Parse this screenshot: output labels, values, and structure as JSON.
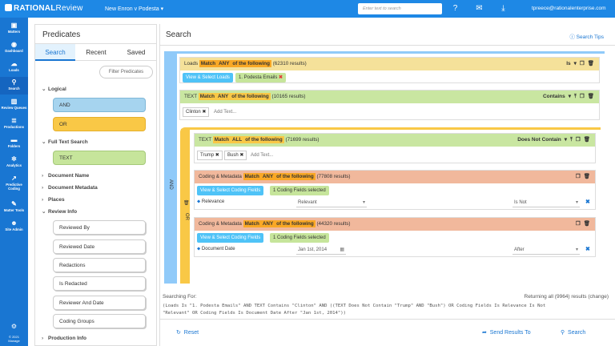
{
  "topbar": {
    "logo_bold": "RATIONAL",
    "logo_thin": "Review",
    "matter": "New Enron v Podesta",
    "search_placeholder": "Enter text to search",
    "user_email": "tpreece@rationalenterprise.com",
    "color": "#1e88e5"
  },
  "nav": {
    "items": [
      {
        "label": "Matters",
        "icon": "briefcase-icon"
      },
      {
        "label": "Dashboard",
        "icon": "dashboard-icon"
      },
      {
        "label": "Loads",
        "icon": "cloud-upload-icon"
      },
      {
        "label": "Search",
        "icon": "search-icon"
      },
      {
        "label": "Review Queues",
        "icon": "bar-chart-icon"
      },
      {
        "label": "Productions",
        "icon": "stack-icon"
      },
      {
        "label": "Folders",
        "icon": "folder-icon"
      },
      {
        "label": "Analytics",
        "icon": "gear-icon"
      },
      {
        "label": "Predictive Coding",
        "icon": "trend-icon"
      },
      {
        "label": "Matter Tools",
        "icon": "wrench-icon"
      },
      {
        "label": "Site Admin",
        "icon": "users-icon"
      }
    ],
    "footer_year": "© 2021",
    "footer_label": "Manage"
  },
  "predicates": {
    "title": "Predicates",
    "tabs": [
      "Search",
      "Recent",
      "Saved"
    ],
    "filter_placeholder": "Filter Predicates",
    "logical_label": "Logical",
    "and_label": "AND",
    "or_label": "OR",
    "fulltext_label": "Full Text Search",
    "text_label": "TEXT",
    "document_name": "Document Name",
    "document_metadata": "Document Metadata",
    "places": "Places",
    "review_info": "Review Info",
    "review_items": [
      "Reviewed By",
      "Reviewed Date",
      "Redactions",
      "Is Redacted",
      "Reviewer And Date",
      "Coding Groups"
    ],
    "production_info": "Production Info"
  },
  "main": {
    "title": "Search",
    "tips": "Search Tips",
    "and_label": "AND",
    "or_label": "OR",
    "loads": {
      "name": "Loads",
      "match": "Match",
      "any": "ANY",
      "of": "of the following",
      "results": "(62310 results)",
      "operator": "Is",
      "chip_action": "View & Select Loads",
      "chip_value": "1. Podesta Emails"
    },
    "text1": {
      "name": "TEXT",
      "match": "Match",
      "any": "ANY",
      "of": "of the following",
      "results": "(10165 results)",
      "operator": "Contains",
      "token": "Clinton",
      "add_text": "Add Text..."
    },
    "text2": {
      "name": "TEXT",
      "match": "Match",
      "all": "ALL",
      "of": "of the following",
      "results": "(71699 results)",
      "operator": "Does Not Contain",
      "tokens": [
        "Trump",
        "Bush"
      ],
      "add_text": "Add Text..."
    },
    "coding1": {
      "name": "Coding & Metadata",
      "match": "Match",
      "any": "ANY",
      "of": "of the following",
      "results": "(77808 results)",
      "chip_action": "View & Select Coding Fields",
      "chip_value": "1 Coding Fields selected",
      "field": "Relevance",
      "value": "Relevant",
      "operator": "Is Not"
    },
    "coding2": {
      "name": "Coding & Metadata",
      "match": "Match",
      "any": "ANY",
      "of": "of the following",
      "results": "(44320 results)",
      "chip_action": "View & Select Coding Fields",
      "chip_value": "1 Coding Fields selected",
      "field": "Document Date",
      "value": "Jan 1st, 2014",
      "operator": "After"
    },
    "searching_for": "Searching For:",
    "returning": "Returning all (9964) results (change)",
    "query_line1": "(Loads Is \"1. Podesta Emails\" AND TEXT Contains \"Clinton\" AND ((TEXT Does Not Contain \"Trump\" AND \"Bush\") OR Coding Fields Is Relevance Is Not",
    "query_line2": "\"Relevant\" OR Coding Fields Is Document Date After \"Jan 1st, 2014\"))",
    "reset": "Reset",
    "send_results": "Send Results To",
    "search": "Search"
  }
}
